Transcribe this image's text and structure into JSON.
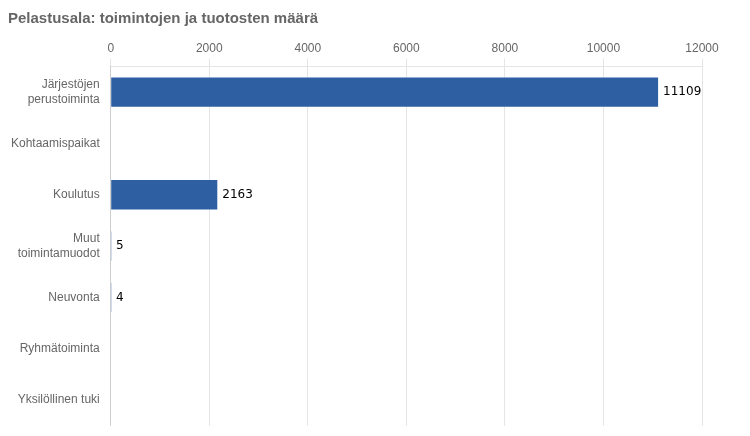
{
  "chart_data": {
    "type": "bar",
    "orientation": "horizontal",
    "title": "Pelastusala: toimintojen ja tuotosten määrä",
    "categories": [
      "Yksilöllinen tuki",
      "Ryhmätoiminta",
      "Neuvonta",
      "Muut\ntoimintamuodot",
      "Koulutus",
      "Kohtaamispaikat",
      "Järjestöjen\nperustoiminta"
    ],
    "values": [
      0,
      0,
      4,
      5,
      2163,
      0,
      11109
    ],
    "value_labels": [
      null,
      null,
      "4",
      "5",
      "2163",
      null,
      "11109"
    ],
    "data_labels": true,
    "color": "#2e5fa3",
    "xlim": [
      0,
      12000
    ],
    "xticks": [
      0,
      2000,
      4000,
      6000,
      8000,
      10000,
      12000
    ],
    "grid": true
  }
}
